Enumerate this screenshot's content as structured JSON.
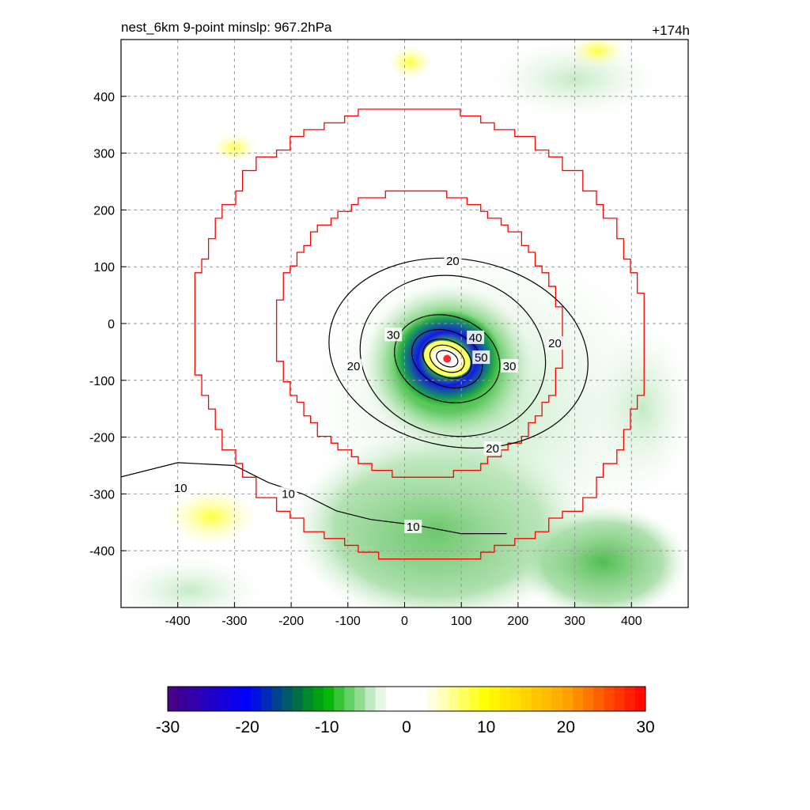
{
  "header": {
    "title": "nest_6km  9-point minslp: 967.2hPa",
    "time_label": "+174h"
  },
  "chart_data": {
    "type": "heatmap",
    "title": "nest_6km  9-point minslp: 967.2hPa",
    "forecast_time": "+174h",
    "xlabel": "",
    "ylabel": "",
    "xlim": [
      -500,
      500
    ],
    "ylim": [
      -500,
      500
    ],
    "x_ticks": [
      -400,
      -300,
      -200,
      -100,
      0,
      100,
      200,
      300,
      400
    ],
    "y_ticks": [
      -400,
      -300,
      -200,
      -100,
      0,
      100,
      200,
      300,
      400
    ],
    "grid": true,
    "grid_style": "dashed",
    "storm_center": [
      75,
      -62
    ],
    "contour_levels": [
      10,
      20,
      30,
      40,
      50
    ],
    "contour_labels": [
      {
        "text": "20",
        "x": 85,
        "y": 110
      },
      {
        "text": "20",
        "x": 265,
        "y": -35
      },
      {
        "text": "20",
        "x": -90,
        "y": -75
      },
      {
        "text": "20",
        "x": 155,
        "y": -220
      },
      {
        "text": "30",
        "x": -20,
        "y": -20
      },
      {
        "text": "30",
        "x": 185,
        "y": -75
      },
      {
        "text": "40",
        "x": 125,
        "y": -25
      },
      {
        "text": "50",
        "x": 135,
        "y": -60
      },
      {
        "text": "10",
        "x": -205,
        "y": -300
      },
      {
        "text": "10",
        "x": 15,
        "y": -358
      },
      {
        "text": "10",
        "x": -395,
        "y": -290
      }
    ],
    "radius_rings_km": [
      250,
      400
    ],
    "colorbar": {
      "min": -30,
      "max": 30,
      "tick_labels": [
        "-30",
        "-20",
        "-10",
        "0",
        "10",
        "20",
        "30"
      ],
      "colors": [
        "#4b0082",
        "#0000ff",
        "#008c3c",
        "#00b400",
        "#ffffff",
        "#ffff00",
        "#ffa500",
        "#ff0000"
      ]
    }
  }
}
